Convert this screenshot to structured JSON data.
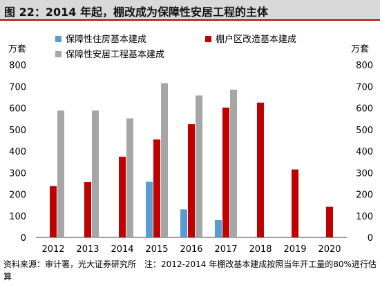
{
  "title": "图 22：2014 年起，棚改成为保障性安居工程的主体",
  "source_note": "资料来源：审计署，光大证券研究所　注：2012-2014 年棚改基本建成按照当年开工量的80%进行估算",
  "chart_data": {
    "type": "bar",
    "categories": [
      "2012",
      "2013",
      "2014",
      "2015",
      "2016",
      "2017",
      "2018",
      "2019",
      "2020"
    ],
    "series": [
      {
        "name": "保障性住房基本建成",
        "color": "#5b9bd5",
        "values": [
          null,
          null,
          null,
          258,
          130,
          80,
          null,
          null,
          null
        ]
      },
      {
        "name": "棚户区改造基本建成",
        "color": "#c00000",
        "values": [
          238,
          256,
          374,
          454,
          525,
          602,
          625,
          315,
          142
        ]
      },
      {
        "name": "保障性安居工程基本建成",
        "color": "#a6a6a6",
        "values": [
          588,
          588,
          552,
          715,
          658,
          685,
          null,
          null,
          null
        ]
      }
    ],
    "ylim": [
      0,
      800
    ],
    "yticks": [
      0,
      100,
      200,
      300,
      400,
      500,
      600,
      700,
      800
    ],
    "ylabel_left": "万套",
    "ylabel_right": "万套",
    "legend_position": "top",
    "grid": false
  }
}
